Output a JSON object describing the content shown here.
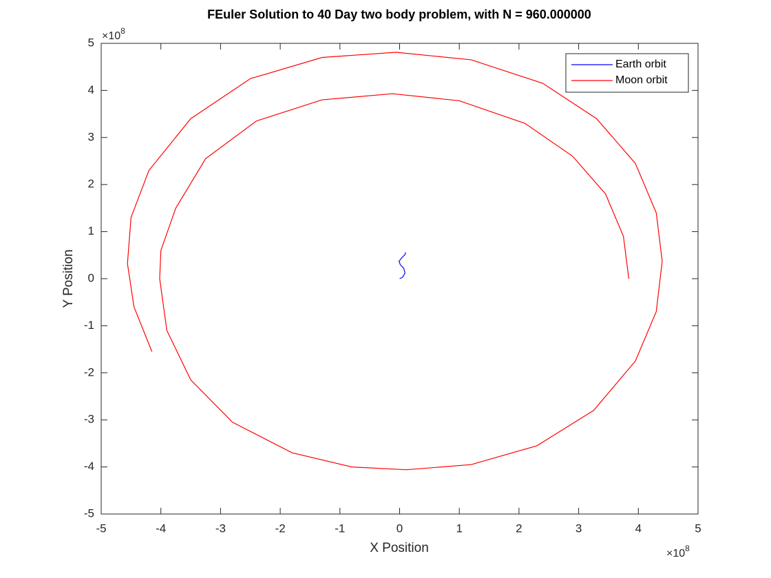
{
  "chart_data": {
    "type": "line",
    "title": "FEuler Solution to 40 Day two body problem, with N = 960.000000",
    "xlabel": "X Position",
    "ylabel": "Y Position",
    "x_exponent": {
      "base": "×10",
      "power": "8"
    },
    "y_exponent": {
      "base": "×10",
      "power": "8"
    },
    "xlim": [
      -5,
      5
    ],
    "ylim": [
      -5,
      5
    ],
    "xticks": [
      -5,
      -4,
      -3,
      -2,
      -1,
      0,
      1,
      2,
      3,
      4,
      5
    ],
    "yticks": [
      -5,
      -4,
      -3,
      -2,
      -1,
      0,
      1,
      2,
      3,
      4,
      5
    ],
    "legend": "northeast",
    "series": [
      {
        "name": "Earth orbit",
        "color": "#0000ff",
        "x": [
          0,
          0.05,
          0.09,
          0.07,
          0.01,
          -0.01,
          0.04,
          0.09,
          0.1
        ],
        "y": [
          0,
          0.03,
          0.12,
          0.22,
          0.3,
          0.37,
          0.45,
          0.51,
          0.56
        ]
      },
      {
        "name": "Moon orbit",
        "color": "#ff0000",
        "x": [
          3.84,
          3.75,
          3.45,
          2.9,
          2.1,
          1.0,
          -0.12,
          -1.3,
          -2.4,
          -3.25,
          -3.75,
          -4.0,
          -4.02,
          -3.9,
          -3.5,
          -2.8,
          -1.8,
          -0.8,
          0.11,
          1.2,
          2.3,
          3.25,
          3.95,
          4.3,
          4.4,
          4.3,
          3.95,
          3.3,
          2.4,
          1.2,
          -0.06,
          -1.3,
          -2.5,
          -3.5,
          -4.2,
          -4.5,
          -4.56,
          -4.45,
          -4.15
        ],
        "y": [
          0,
          0.9,
          1.8,
          2.6,
          3.3,
          3.78,
          3.93,
          3.8,
          3.35,
          2.55,
          1.5,
          0.6,
          0,
          -1.1,
          -2.15,
          -3.05,
          -3.7,
          -4.0,
          -4.06,
          -3.95,
          -3.55,
          -2.8,
          -1.75,
          -0.7,
          0.37,
          1.4,
          2.45,
          3.4,
          4.15,
          4.65,
          4.81,
          4.7,
          4.25,
          3.4,
          2.3,
          1.3,
          0.32,
          -0.6,
          -1.55
        ]
      }
    ]
  }
}
